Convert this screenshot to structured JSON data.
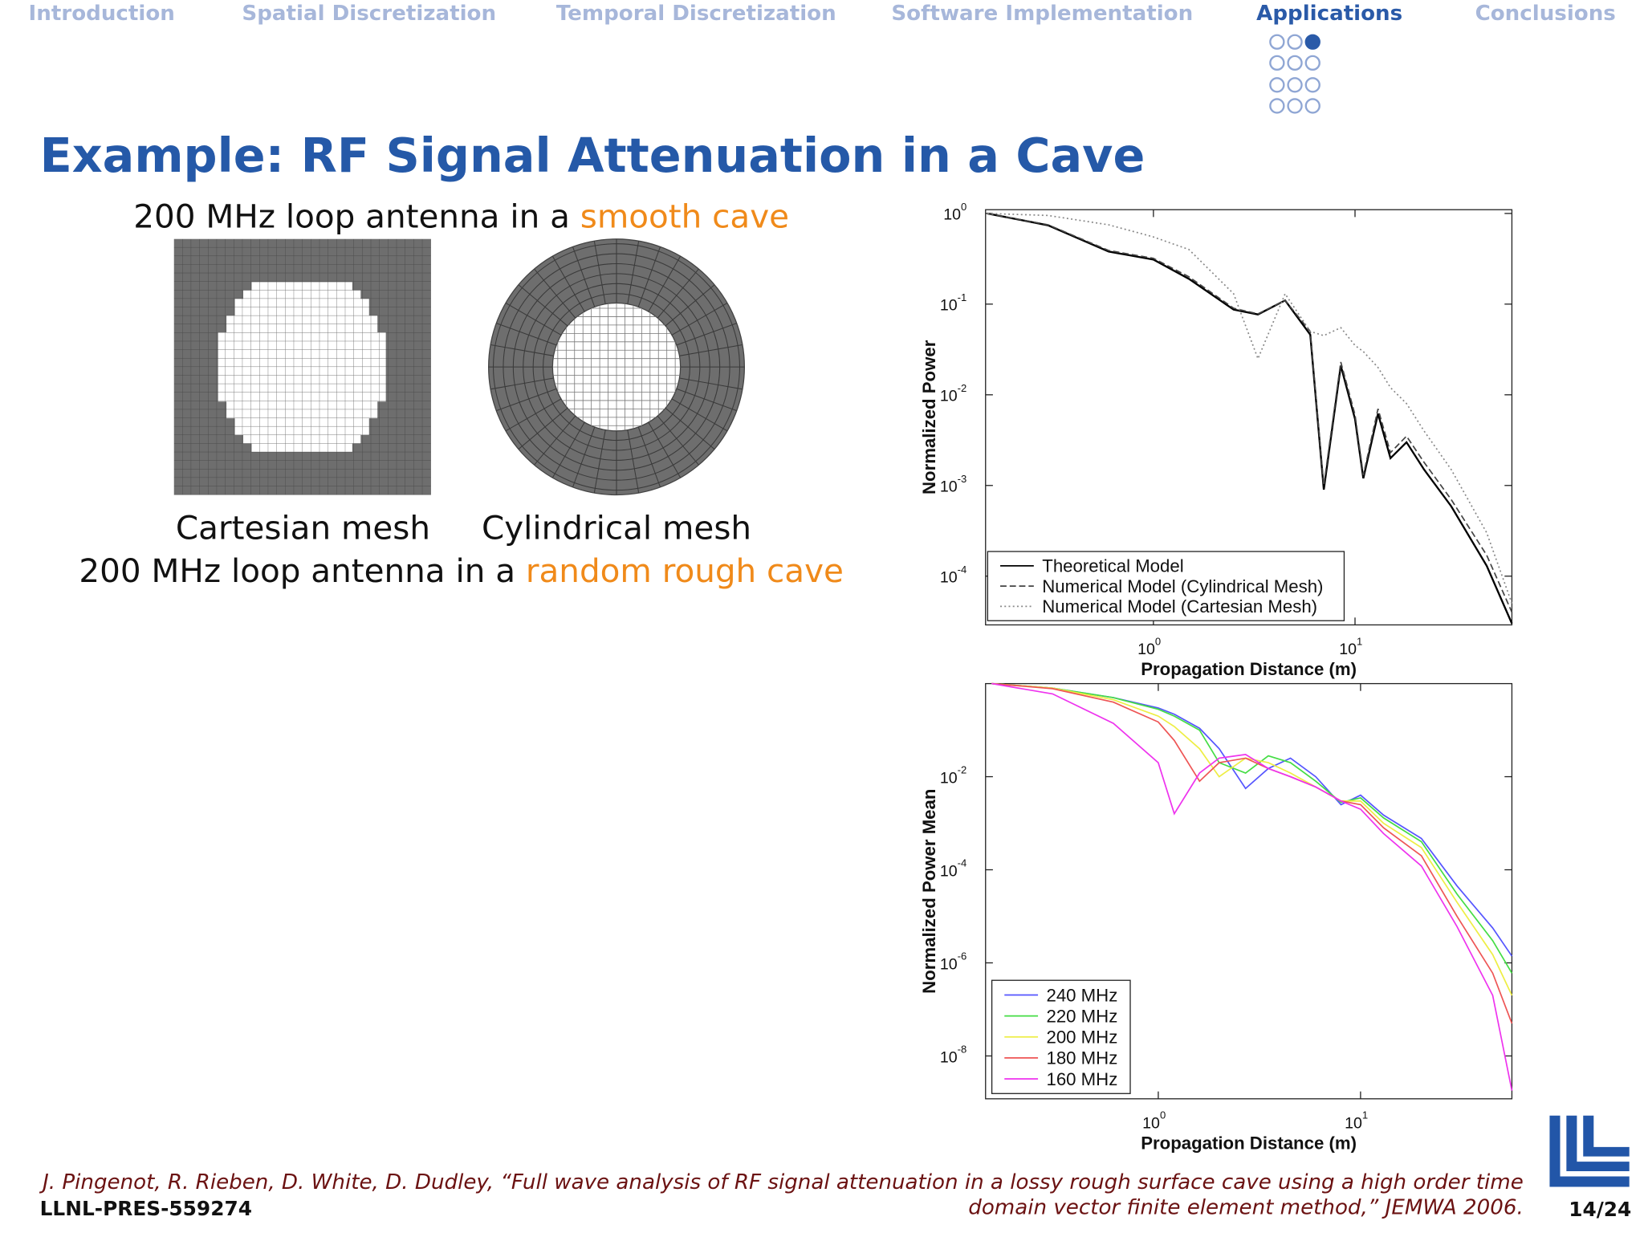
{
  "nav": {
    "items": [
      "Introduction",
      "Spatial Discretization",
      "Temporal Discretization",
      "Software Implementation",
      "Applications",
      "Conclusions"
    ],
    "active": 4
  },
  "title": "Example: RF Signal Attenuation in a Cave",
  "smooth_line": {
    "prefix": "200 MHz loop antenna in a ",
    "highlight": "smooth cave"
  },
  "mesh_labels": [
    "Cartesian mesh",
    "Cylindrical mesh"
  ],
  "rough_line": {
    "prefix": "200 MHz loop antenna in a ",
    "highlight": "random rough cave"
  },
  "citation": [
    "J. Pingenot, R. Rieben, D. White, D. Dudley, “Full wave analysis of RF signal attenuation in a lossy rough surface cave using a high order time",
    "domain vector finite element method,” JEMWA 2006."
  ],
  "report_id": "LLNL-PRES-559274",
  "page": "14/24",
  "chart_data": [
    {
      "type": "line",
      "log_x": true,
      "log_y": true,
      "ylabel": "Normalized Power",
      "xlabel": "Propagation Distance (m)",
      "xlim": [
        0.147,
        60
      ],
      "ylim": [
        2.9e-05,
        1.1
      ],
      "xticks": [
        {
          "value": 1,
          "label": "10",
          "sup": "0"
        },
        {
          "value": 10,
          "label": "10",
          "sup": "1"
        }
      ],
      "yticks": [
        {
          "value": 1,
          "label": "10",
          "sup": "0"
        },
        {
          "value": 0.1,
          "label": "10",
          "sup": "-1"
        },
        {
          "value": 0.01,
          "label": "10",
          "sup": "-2"
        },
        {
          "value": 0.001,
          "label": "10",
          "sup": "-3"
        },
        {
          "value": 0.0001,
          "label": "10",
          "sup": "-4"
        }
      ],
      "legend": "lower left",
      "x": [
        0.15,
        0.3,
        0.6,
        1.0,
        1.5,
        2.5,
        3.3,
        4.5,
        6.0,
        7.0,
        8.5,
        10,
        11,
        13,
        15,
        18,
        22,
        30,
        45,
        60
      ],
      "series": [
        {
          "name": "Theoretical Model",
          "color": "#000000",
          "style": "solid",
          "values": [
            1.0,
            0.74,
            0.38,
            0.31,
            0.19,
            0.087,
            0.077,
            0.11,
            0.046,
            0.0009,
            0.021,
            0.0054,
            0.0012,
            0.0062,
            0.002,
            0.003,
            0.0015,
            0.00059,
            0.00013,
            3e-05
          ]
        },
        {
          "name": "Numerical Model (Cylindrical Mesh)",
          "color": "#444444",
          "style": "dashed",
          "values": [
            1.0,
            0.75,
            0.39,
            0.32,
            0.2,
            0.09,
            0.078,
            0.11,
            0.05,
            0.001,
            0.023,
            0.006,
            0.0013,
            0.007,
            0.0023,
            0.0035,
            0.0018,
            0.0007,
            0.00017,
            4e-05
          ]
        },
        {
          "name": "Numerical Model (Cartesian Mesh)",
          "color": "#888888",
          "style": "dotted",
          "values": [
            1.0,
            0.95,
            0.75,
            0.55,
            0.4,
            0.13,
            0.025,
            0.13,
            0.05,
            0.045,
            0.055,
            0.035,
            0.03,
            0.02,
            0.012,
            0.008,
            0.004,
            0.0015,
            0.0003,
            5e-05
          ]
        }
      ]
    },
    {
      "type": "line",
      "log_x": true,
      "log_y": true,
      "ylabel": "Normalized Power Mean",
      "xlabel": "Propagation Distance (m)",
      "xlim": [
        0.14,
        56
      ],
      "ylim": [
        1.2e-09,
        1.0
      ],
      "xticks": [
        {
          "value": 1,
          "label": "10",
          "sup": "0"
        },
        {
          "value": 10,
          "label": "10",
          "sup": "1"
        }
      ],
      "yticks": [
        {
          "value": 0.01,
          "label": "10",
          "sup": "-2"
        },
        {
          "value": 0.0001,
          "label": "10",
          "sup": "-4"
        },
        {
          "value": 1e-06,
          "label": "10",
          "sup": "-6"
        },
        {
          "value": 1e-08,
          "label": "10",
          "sup": "-8"
        }
      ],
      "legend": "lower left",
      "x": [
        0.15,
        0.3,
        0.6,
        1.0,
        1.2,
        1.6,
        2.0,
        2.7,
        3.5,
        4.5,
        6,
        8,
        10,
        13,
        20,
        30,
        45,
        56
      ],
      "series": [
        {
          "name": "240 MHz",
          "color": "#5555ff",
          "values": [
            1.0,
            0.8,
            0.5,
            0.3,
            0.22,
            0.11,
            0.04,
            0.0056,
            0.015,
            0.025,
            0.01,
            0.0025,
            0.004,
            0.0015,
            0.00047,
            4.5e-05,
            5.6e-06,
            1.4e-06
          ]
        },
        {
          "name": "220 MHz",
          "color": "#44dd44",
          "values": [
            1.0,
            0.8,
            0.5,
            0.28,
            0.2,
            0.1,
            0.02,
            0.012,
            0.028,
            0.02,
            0.008,
            0.0028,
            0.0035,
            0.0013,
            0.0004,
            3e-05,
            3e-06,
            6e-07
          ]
        },
        {
          "name": "200 MHz",
          "color": "#eeee44",
          "values": [
            1.0,
            0.8,
            0.45,
            0.2,
            0.12,
            0.04,
            0.01,
            0.025,
            0.02,
            0.012,
            0.006,
            0.003,
            0.003,
            0.001,
            0.0003,
            2e-05,
            1.5e-06,
            2e-07
          ]
        },
        {
          "name": "180 MHz",
          "color": "#ee5555",
          "values": [
            1.0,
            0.78,
            0.4,
            0.15,
            0.06,
            0.008,
            0.02,
            0.025,
            0.015,
            0.01,
            0.006,
            0.003,
            0.0025,
            0.0008,
            0.0002,
            1e-05,
            6e-07,
            5e-08
          ]
        },
        {
          "name": "160 MHz",
          "color": "#ee33ee",
          "values": [
            1.0,
            0.6,
            0.14,
            0.02,
            0.0016,
            0.012,
            0.025,
            0.03,
            0.015,
            0.01,
            0.006,
            0.003,
            0.002,
            0.0006,
            0.00012,
            6e-06,
            2e-07,
            1.8e-09
          ]
        }
      ]
    }
  ]
}
